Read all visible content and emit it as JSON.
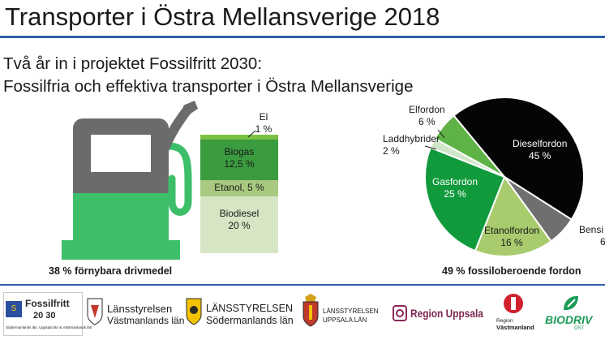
{
  "title": "Transporter i Östra Mellansverige 2018",
  "subtitle_line1": "Två år in i projektet Fossilfritt 2030:",
  "subtitle_line2": "Fossilfria och effektiva transporter i Östra Mellansverige",
  "colors": {
    "rule": "#2e5fa8",
    "pump_gray": "#6b6b6b",
    "pump_green": "#3dbf6a",
    "biogas": "#3a9b3f",
    "etanol": "#a8c97f",
    "biodiesel": "#d6e6c4",
    "el": "#7cc142",
    "diesel": "#050505",
    "gas": "#119a3c",
    "etanolfordon": "#a8cc6d",
    "laddhybrid": "#cfe6c8",
    "elfordon": "#5fb246",
    "bensin": "#6f6f6f"
  },
  "fuel_bar": {
    "caption": "38 % förnybara drivmedel",
    "segments": [
      {
        "name": "El",
        "value_label": "1 %",
        "percent": 1
      },
      {
        "name": "Biogas",
        "value_label": "12,5 %",
        "percent": 12.5
      },
      {
        "name": "Etanol",
        "value_label": "5 %",
        "percent": 5
      },
      {
        "name": "Biodiesel",
        "value_label": "20 %",
        "percent": 20
      }
    ]
  },
  "vehicle_pie": {
    "caption": "49 % fossiloberoende fordon",
    "slices": [
      {
        "name": "Dieselfordon",
        "value_label": "45 %",
        "percent": 45
      },
      {
        "name": "Bensi",
        "value_label": "6",
        "percent": 6
      },
      {
        "name": "Etanolfordon",
        "value_label": "16 %",
        "percent": 16
      },
      {
        "name": "Gasfordon",
        "value_label": "25 %",
        "percent": 25
      },
      {
        "name": "Laddhybrider",
        "value_label": "2 %",
        "percent": 2
      },
      {
        "name": "Elfordon",
        "value_label": "6 %",
        "percent": 6
      }
    ]
  },
  "footer_logos": {
    "fossilfritt_title": "Fossilfritt",
    "fossilfritt_year": "20 30",
    "fossilfritt_small": "Södermanlands län, Uppsala län & Västmanlands län",
    "eu_mark": "S",
    "lst_vastmanland_1": "Länsstyrelsen",
    "lst_vastmanland_2": "Västmanlands län",
    "lst_sodermanland_1": "LÄNSSTYRELSEN",
    "lst_sodermanland_2": "Södermanlands län",
    "lst_uppsala_1": "LÄNSSTYRELSEN",
    "lst_uppsala_2": "UPPSALA LÄN",
    "region_uppsala": "Region Uppsala",
    "region_vastmanland_1": "Region",
    "region_vastmanland_2": "Västmanland",
    "biodriv": "BIODRIV",
    "biodriv_sub": "ÖST"
  }
}
